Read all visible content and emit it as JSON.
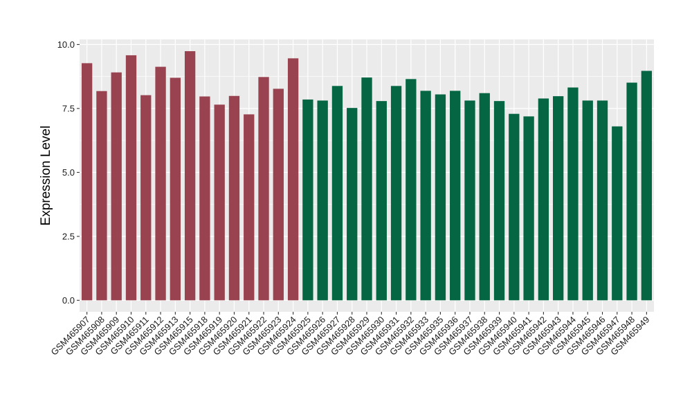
{
  "chart_data": {
    "type": "bar",
    "title": "",
    "xlabel": "",
    "ylabel": "Expression Level",
    "ylim": [
      -0.45,
      10.2
    ],
    "yticks": [
      0.0,
      2.5,
      5.0,
      7.5,
      10.0
    ],
    "ytick_labels": [
      "0.0",
      "2.5",
      "5.0",
      "7.5",
      "10.0"
    ],
    "grid": true,
    "legend": "none",
    "colors": {
      "group1": "#9a4350",
      "group2": "#056643",
      "panel_bg": "#ebebeb",
      "grid": "#ffffff"
    },
    "categories": [
      "GSM465907",
      "GSM465908",
      "GSM465909",
      "GSM465910",
      "GSM465911",
      "GSM465912",
      "GSM465913",
      "GSM465915",
      "GSM465918",
      "GSM465919",
      "GSM465920",
      "GSM465921",
      "GSM465922",
      "GSM465923",
      "GSM465924",
      "GSM465925",
      "GSM465926",
      "GSM465927",
      "GSM465928",
      "GSM465929",
      "GSM465930",
      "GSM465931",
      "GSM465932",
      "GSM465933",
      "GSM465935",
      "GSM465936",
      "GSM465937",
      "GSM465938",
      "GSM465939",
      "GSM465940",
      "GSM465941",
      "GSM465942",
      "GSM465943",
      "GSM465944",
      "GSM465945",
      "GSM465946",
      "GSM465947",
      "GSM465948",
      "GSM465949"
    ],
    "values": [
      9.27,
      8.18,
      8.91,
      9.58,
      8.02,
      9.13,
      8.7,
      9.74,
      7.97,
      7.65,
      7.99,
      7.27,
      8.73,
      8.27,
      9.46,
      7.85,
      7.81,
      8.38,
      7.52,
      8.71,
      7.79,
      8.38,
      8.65,
      8.19,
      8.05,
      8.19,
      7.81,
      8.1,
      7.79,
      7.29,
      7.19,
      7.89,
      7.98,
      8.32,
      7.81,
      7.81,
      6.8,
      8.51,
      8.97
    ],
    "groups": [
      1,
      1,
      1,
      1,
      1,
      1,
      1,
      1,
      1,
      1,
      1,
      1,
      1,
      1,
      1,
      2,
      2,
      2,
      2,
      2,
      2,
      2,
      2,
      2,
      2,
      2,
      2,
      2,
      2,
      2,
      2,
      2,
      2,
      2,
      2,
      2,
      2,
      2,
      2
    ]
  }
}
